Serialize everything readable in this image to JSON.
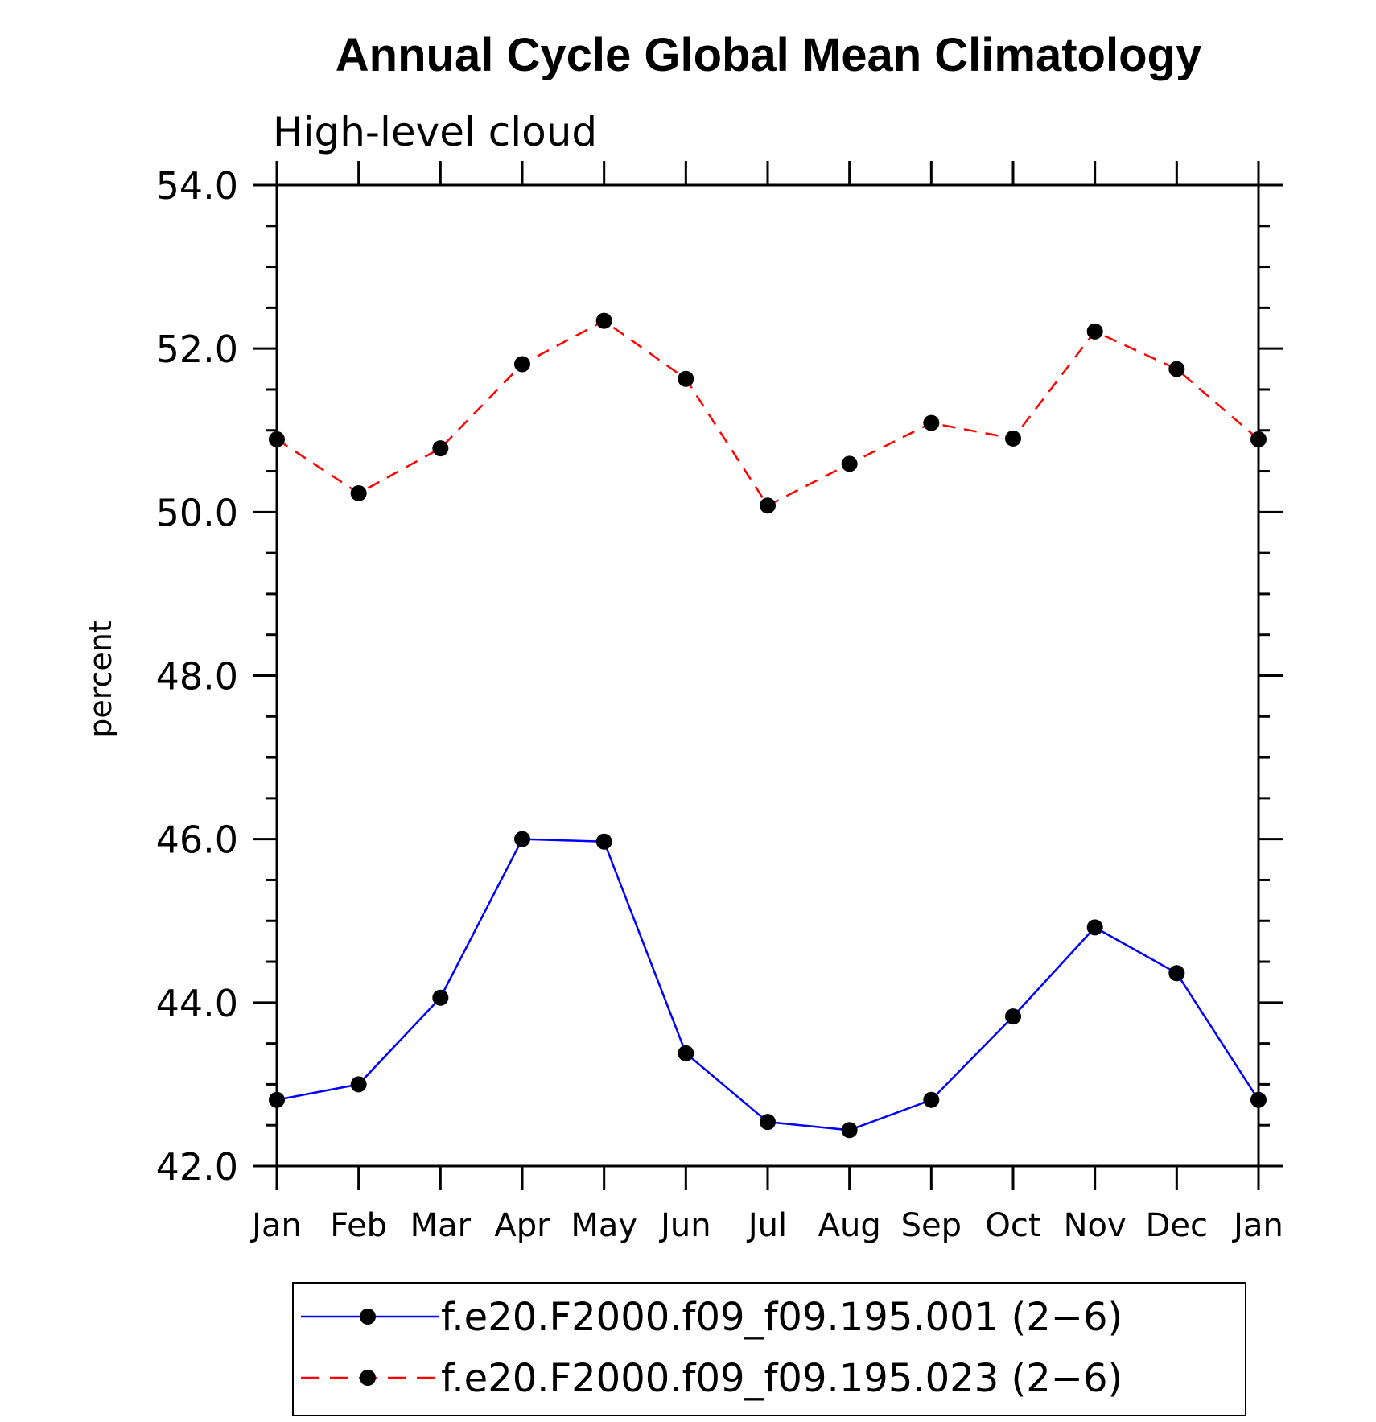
{
  "chart_data": {
    "type": "line",
    "title": "Annual Cycle Global Mean Climatology",
    "subtitle": "High-level cloud",
    "ylabel": "percent",
    "xlabel": "",
    "categories": [
      "Jan",
      "Feb",
      "Mar",
      "Apr",
      "May",
      "Jun",
      "Jul",
      "Aug",
      "Sep",
      "Oct",
      "Nov",
      "Dec",
      "Jan"
    ],
    "ylim": [
      42.0,
      54.0
    ],
    "yticks": [
      "42.0",
      "44.0",
      "46.0",
      "48.0",
      "50.0",
      "52.0",
      "54.0"
    ],
    "grid": false,
    "legend_position": "bottom",
    "series": [
      {
        "name": "f.e20.F2000.f09_f09.195.001 (2−6)",
        "color": "#0000ff",
        "line_style": "solid",
        "marker": "filled-circle",
        "values": [
          42.81,
          43.0,
          44.06,
          46.0,
          45.97,
          43.38,
          42.54,
          42.44,
          42.81,
          43.83,
          44.92,
          44.36,
          42.81
        ]
      },
      {
        "name": "f.e20.F2000.f09_f09.195.023 (2−6)",
        "color": "#ff0000",
        "line_style": "dashed",
        "marker": "filled-circle",
        "values": [
          50.89,
          50.23,
          50.78,
          51.81,
          52.34,
          51.63,
          50.08,
          50.59,
          51.09,
          50.9,
          52.21,
          51.75,
          50.89
        ]
      }
    ]
  }
}
